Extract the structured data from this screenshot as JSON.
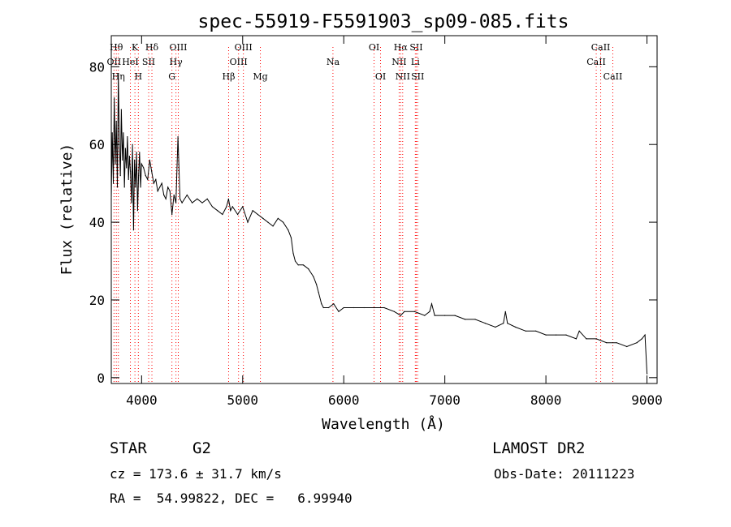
{
  "chart_data": {
    "type": "line",
    "title": "spec-55919-F5591903_sp09-085.fits",
    "xlabel": "Wavelength (Å)",
    "ylabel": "Flux (relative)",
    "xlim": [
      3700,
      9100
    ],
    "ylim": [
      -1.5,
      88
    ],
    "x_ticks": [
      4000,
      5000,
      6000,
      7000,
      8000,
      9000
    ],
    "y_ticks": [
      0,
      20,
      40,
      60,
      80
    ],
    "grid": false,
    "line_color": "#000000",
    "marker_color": "#ff0000",
    "series": [
      {
        "x": [
          3700,
          3710,
          3720,
          3730,
          3740,
          3750,
          3760,
          3770,
          3780,
          3790,
          3800,
          3810,
          3820,
          3830,
          3840,
          3850,
          3860,
          3870,
          3880,
          3890,
          3900,
          3910,
          3920,
          3930,
          3940,
          3950,
          3960,
          3970,
          3980,
          3990,
          4000,
          4020,
          4040,
          4060,
          4080,
          4100,
          4120,
          4140,
          4160,
          4180,
          4200,
          4220,
          4240,
          4260,
          4280,
          4300,
          4320,
          4340,
          4360,
          4380,
          4400,
          4450,
          4500,
          4550,
          4600,
          4650,
          4700,
          4750,
          4800,
          4840,
          4860,
          4880,
          4900,
          4950,
          5000,
          5050,
          5100,
          5150,
          5200,
          5250,
          5300,
          5350,
          5400,
          5450,
          5480,
          5500,
          5520,
          5550,
          5600,
          5650,
          5700,
          5730,
          5750,
          5780,
          5800,
          5850,
          5900,
          5950,
          6000,
          6100,
          6200,
          6300,
          6400,
          6500,
          6563,
          6600,
          6700,
          6800,
          6850,
          6870,
          6900,
          7000,
          7100,
          7200,
          7300,
          7400,
          7500,
          7580,
          7600,
          7620,
          7700,
          7800,
          7900,
          8000,
          8100,
          8200,
          8300,
          8330,
          8400,
          8500,
          8600,
          8700,
          8800,
          8900,
          8950,
          8980,
          9000
        ],
        "values": [
          46,
          63,
          50,
          72,
          55,
          66,
          49,
          78,
          60,
          52,
          69,
          56,
          63,
          49,
          59,
          54,
          62,
          51,
          57,
          53,
          45,
          60,
          38,
          56,
          49,
          58,
          43,
          52,
          58,
          49,
          55,
          54,
          52,
          51,
          56,
          53,
          50,
          51,
          48,
          49,
          50,
          47,
          46,
          49,
          48,
          42,
          47,
          45,
          62,
          46,
          45,
          47,
          45,
          46,
          45,
          46,
          44,
          43,
          42,
          44,
          46,
          43,
          44,
          42,
          44,
          40,
          43,
          42,
          41,
          40,
          39,
          41,
          40,
          38,
          36,
          32,
          30,
          29,
          29,
          28,
          26,
          24,
          22,
          19,
          18,
          18,
          19,
          17,
          18,
          18,
          18,
          18,
          18,
          17,
          16,
          17,
          17,
          16,
          17,
          19,
          16,
          16,
          16,
          15,
          15,
          14,
          13,
          14,
          17,
          14,
          13,
          12,
          12,
          11,
          11,
          11,
          10,
          12,
          10,
          10,
          9,
          9,
          8,
          9,
          10,
          11,
          1
        ]
      }
    ],
    "line_markers": [
      {
        "x": 3750,
        "label": "Hθ",
        "row": 1
      },
      {
        "x": 3727,
        "label": "OII",
        "row": 2
      },
      {
        "x": 3770,
        "label": "Hη",
        "row": 3
      },
      {
        "x": 3934,
        "label": "K",
        "row": 1
      },
      {
        "x": 3889,
        "label": "HeI",
        "row": 2
      },
      {
        "x": 3968,
        "label": "H",
        "row": 3
      },
      {
        "x": 4070,
        "label": "SII",
        "row": 2
      },
      {
        "x": 4102,
        "label": "Hδ",
        "row": 1
      },
      {
        "x": 4300,
        "label": "G",
        "row": 3
      },
      {
        "x": 4340,
        "label": "Hγ",
        "row": 2
      },
      {
        "x": 4363,
        "label": "OIII",
        "row": 1
      },
      {
        "x": 4861,
        "label": "Hβ",
        "row": 3
      },
      {
        "x": 4959,
        "label": "OIII",
        "row": 2
      },
      {
        "x": 5007,
        "label": "OIII",
        "row": 1
      },
      {
        "x": 5175,
        "label": "Mg",
        "row": 3
      },
      {
        "x": 5893,
        "label": "Na",
        "row": 2
      },
      {
        "x": 6300,
        "label": "OI",
        "row": 1
      },
      {
        "x": 6364,
        "label": "OI",
        "row": 3
      },
      {
        "x": 6548,
        "label": "NII",
        "row": 2
      },
      {
        "x": 6563,
        "label": "Hα",
        "row": 1
      },
      {
        "x": 6583,
        "label": "NII",
        "row": 3
      },
      {
        "x": 6708,
        "label": "Li",
        "row": 2
      },
      {
        "x": 6717,
        "label": "SII",
        "row": 1
      },
      {
        "x": 6731,
        "label": "SII",
        "row": 3
      },
      {
        "x": 8498,
        "label": "CaII",
        "row": 2
      },
      {
        "x": 8542,
        "label": "CaII",
        "row": 1
      },
      {
        "x": 8662,
        "label": "CaII",
        "row": 3
      }
    ]
  },
  "info": {
    "object_class": "STAR",
    "subclass": "G2",
    "survey": "LAMOST DR2",
    "redshift_line": "cz = 173.6 ± 31.7 km/s",
    "obs_date_line": "Obs-Date: 20111223",
    "coords_line": "RA =  54.99822, DEC =   6.99940"
  }
}
